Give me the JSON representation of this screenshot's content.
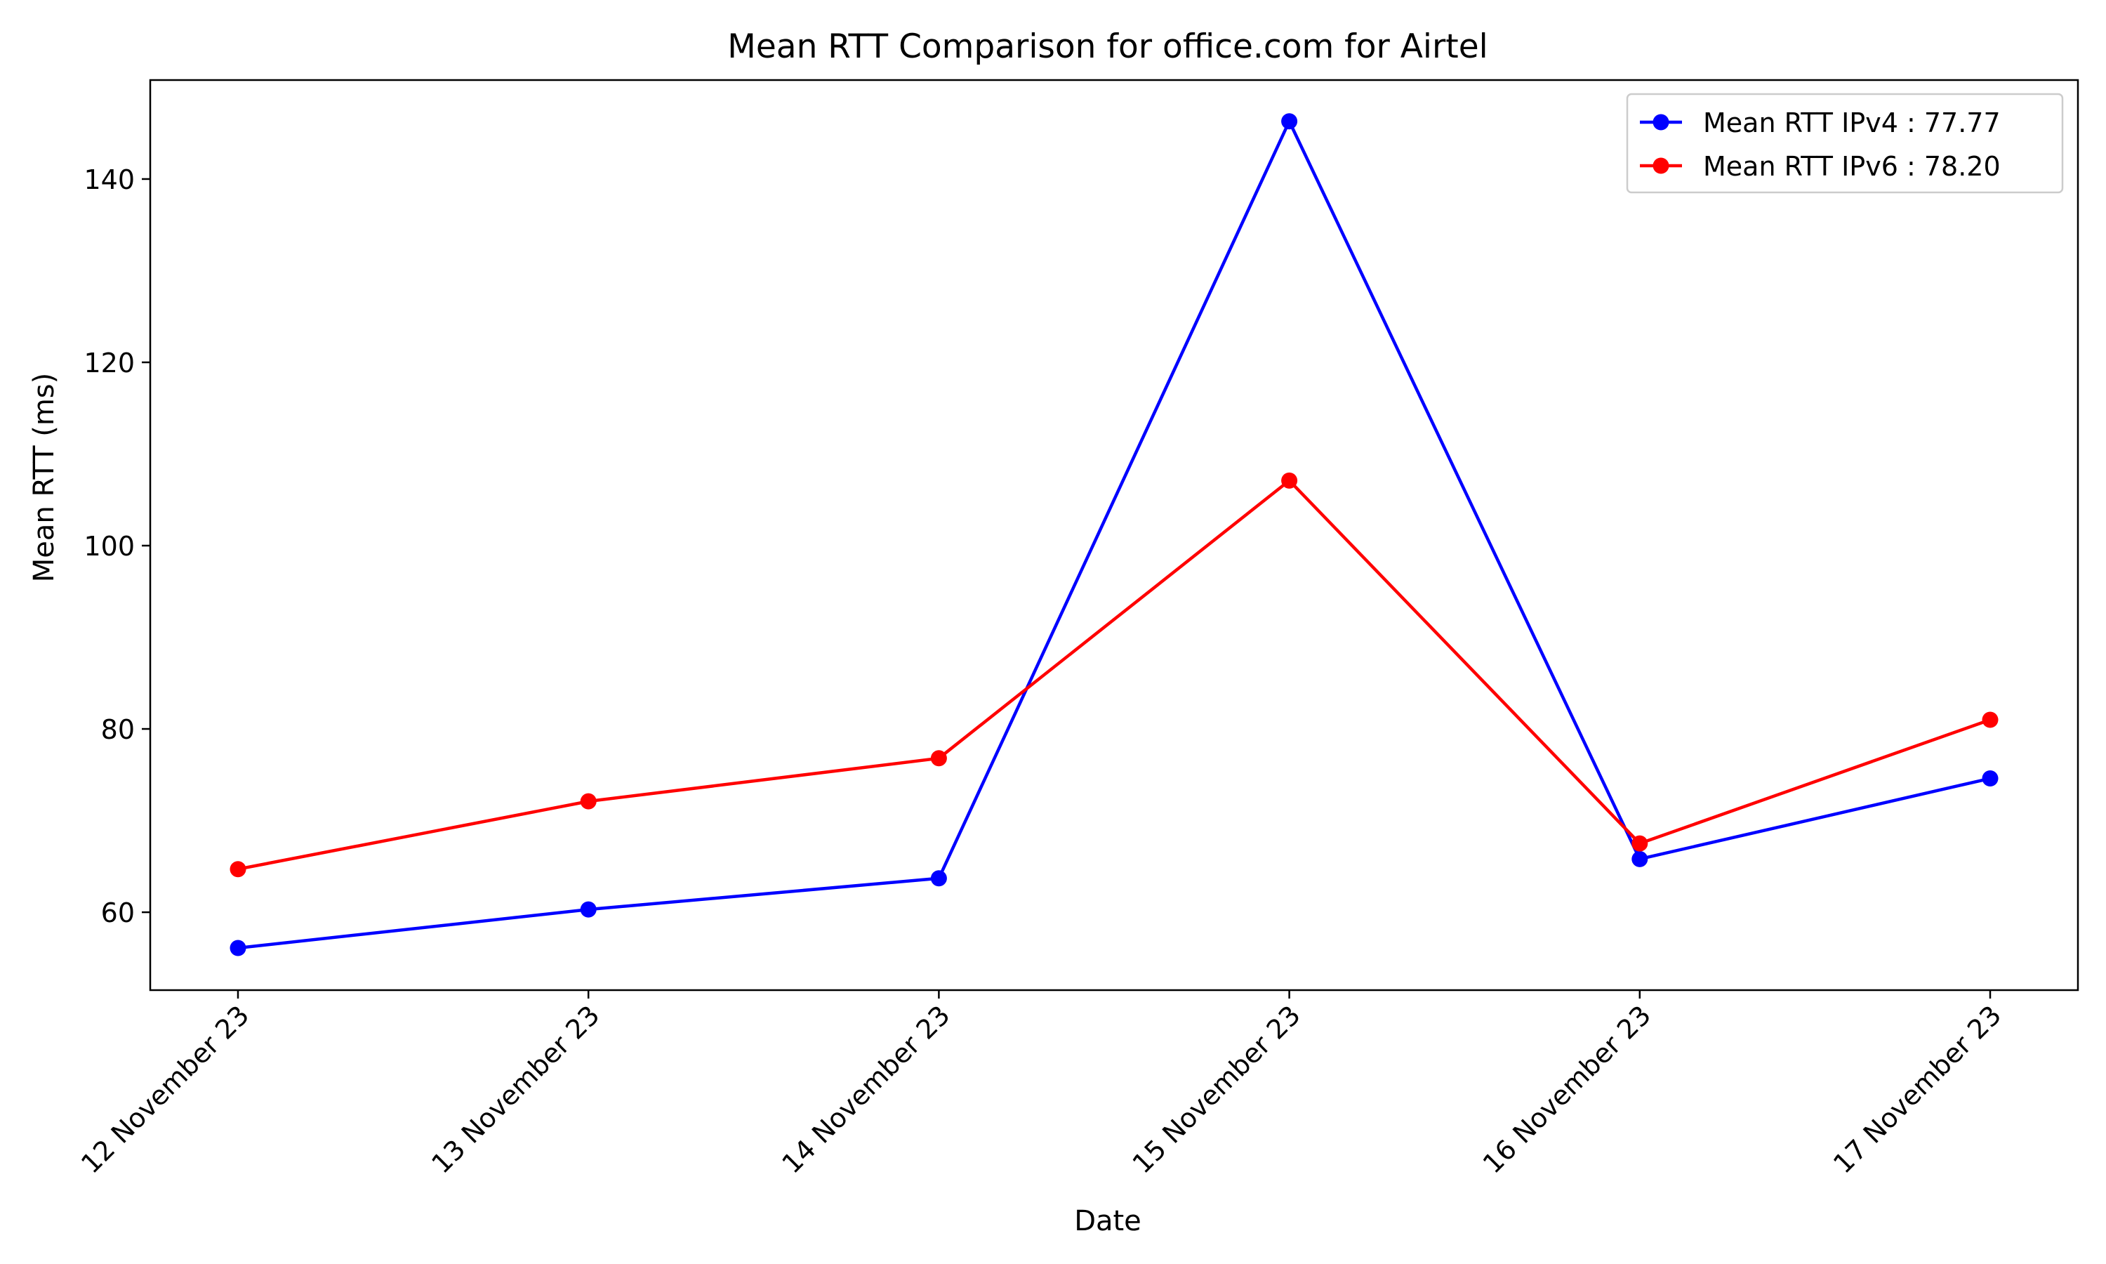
{
  "chart_data": {
    "type": "line",
    "title": "Mean RTT Comparison for office.com for Airtel",
    "xlabel": "Date",
    "ylabel": "Mean RTT (ms)",
    "categories": [
      "12 November 23",
      "13 November 23",
      "14 November 23",
      "15 November 23",
      "16 November 23",
      "17 November 23"
    ],
    "ylim": [
      51.5,
      150.8
    ],
    "yticks": [
      60,
      80,
      100,
      120,
      140
    ],
    "grid": false,
    "legend_position": "top-right",
    "series": [
      {
        "name": "Mean RTT IPv4 : 77.77",
        "color": "#0000ff",
        "marker": "circle",
        "values": [
          56.1,
          60.3,
          63.7,
          146.3,
          65.8,
          74.6
        ]
      },
      {
        "name": "Mean RTT IPv6 : 78.20",
        "color": "#ff0000",
        "marker": "circle",
        "values": [
          64.7,
          72.1,
          76.8,
          107.1,
          67.5,
          81.0
        ]
      }
    ]
  }
}
